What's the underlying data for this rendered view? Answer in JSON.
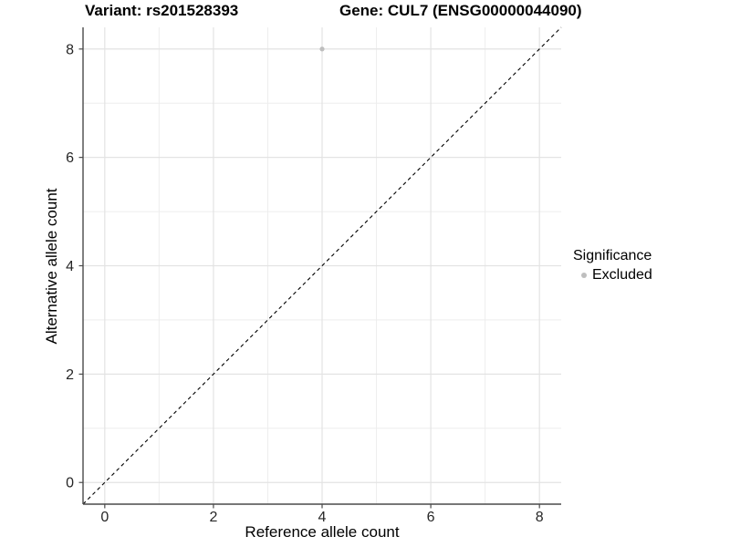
{
  "chart_data": {
    "type": "scatter",
    "title_variant": "Variant: rs201528393",
    "title_gene": "Gene: CUL7 (ENSG00000044090)",
    "xlabel": "Reference allele count",
    "ylabel": "Alternative allele count",
    "xlim": [
      -0.4,
      8.4
    ],
    "ylim": [
      -0.4,
      8.4
    ],
    "x_ticks": [
      0,
      2,
      4,
      6,
      8
    ],
    "y_ticks": [
      0,
      2,
      4,
      6,
      8
    ],
    "x_grid_minor": [
      1,
      3,
      5,
      7
    ],
    "y_grid_minor": [
      1,
      3,
      5,
      7
    ],
    "grid": true,
    "legend": {
      "title": "Significance",
      "position": "right",
      "items": [
        {
          "label": "Excluded",
          "color": "#bebebe"
        }
      ]
    },
    "series": [
      {
        "name": "Excluded",
        "color": "#bebebe",
        "points": [
          {
            "x": 4,
            "y": 8
          }
        ]
      }
    ],
    "reference_line": {
      "type": "identity",
      "slope": 1,
      "intercept": 0,
      "style": "dashed",
      "color": "#000000"
    }
  },
  "colors": {
    "background": "#ffffff",
    "grid_major": "#e3e3e3",
    "grid_minor": "#ededed",
    "axis_line": "#4a4a4a",
    "tick_text": "#262626",
    "point": "#bebebe",
    "reference_line": "#000000"
  }
}
